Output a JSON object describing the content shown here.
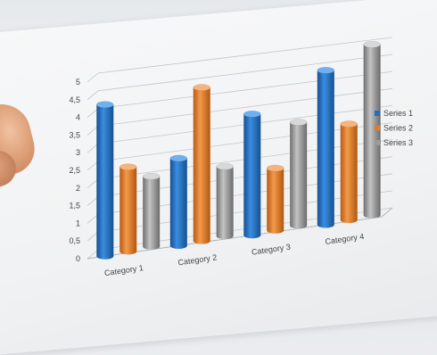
{
  "chart_data": {
    "type": "bar",
    "title": "",
    "xlabel": "",
    "ylabel": "",
    "categories": [
      "Category 1",
      "Category 2",
      "Category 3",
      "Category 4"
    ],
    "series": [
      {
        "name": "Series 1",
        "values": [
          4.3,
          2.5,
          3.5,
          4.5
        ]
      },
      {
        "name": "Series 2",
        "values": [
          2.4,
          4.4,
          1.8,
          2.8
        ]
      },
      {
        "name": "Series 3",
        "values": [
          2.0,
          2.0,
          3.0,
          5.0
        ]
      }
    ],
    "ylim": [
      0,
      5
    ],
    "yticks": [
      "0",
      "0,5",
      "1",
      "1,5",
      "2",
      "2,5",
      "3",
      "3,5",
      "4",
      "4,5",
      "5"
    ],
    "grid": true,
    "legend": "right",
    "colors": [
      "#1f6fc4",
      "#e47a26",
      "#9a9a9a"
    ]
  }
}
